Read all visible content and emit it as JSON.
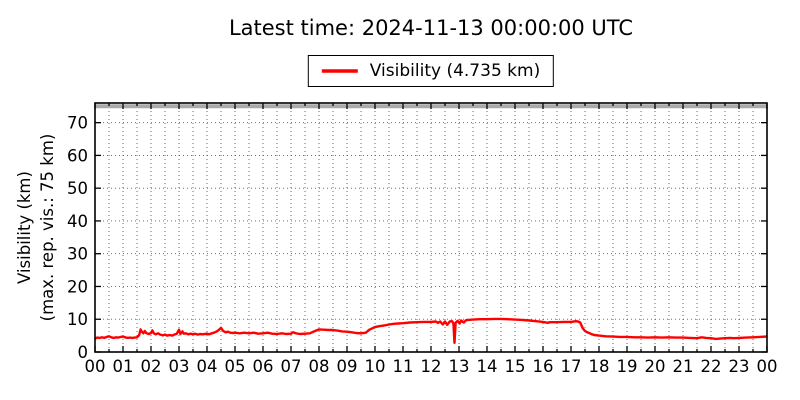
{
  "header": {
    "title": "Latest time: 2024-11-13 00:00:00 UTC"
  },
  "legend": {
    "label": "Visibility (4.735 km)",
    "swatch_color": "#ff0000",
    "position": "above plot, centered"
  },
  "colors": {
    "line": "#ff0000",
    "max_vis_band": "#aaaaaa",
    "frame": "#000000",
    "grid": "#5a5a5a",
    "background": "#ffffff",
    "text": "#000000"
  },
  "chart_data": {
    "type": "line",
    "title": "Latest time: 2024-11-13 00:00:00 UTC",
    "xlabel": "",
    "ylabel_line1": "Visibility (km)",
    "ylabel_line2": "(max. rep. vis.: 75 km)",
    "xlim": [
      0,
      24
    ],
    "ylim": [
      0,
      76
    ],
    "x_tick_labels": [
      "00",
      "01",
      "02",
      "03",
      "04",
      "05",
      "06",
      "07",
      "08",
      "09",
      "10",
      "11",
      "12",
      "13",
      "14",
      "15",
      "16",
      "17",
      "18",
      "19",
      "20",
      "21",
      "22",
      "23",
      "00"
    ],
    "x_tick_hours": [
      0,
      1,
      2,
      3,
      4,
      5,
      6,
      7,
      8,
      9,
      10,
      11,
      12,
      13,
      14,
      15,
      16,
      17,
      18,
      19,
      20,
      21,
      22,
      23,
      24
    ],
    "y_tick_labels": [
      "0",
      "10",
      "20",
      "30",
      "40",
      "50",
      "60",
      "70"
    ],
    "y_ticks": [
      0,
      10,
      20,
      30,
      40,
      50,
      60,
      70
    ],
    "grid": "dotted; vertical every 0.5 h, horizontal every 10 km",
    "max_reported_visibility_km": 75,
    "latest_value_km": 4.735,
    "legend_position": "upper center, outside axes",
    "series": [
      {
        "name": "Visibility (4.735 km)",
        "color": "#ff0000",
        "units": "km",
        "points": [
          [
            0.0,
            4.1
          ],
          [
            0.08,
            4.4
          ],
          [
            0.17,
            4.3
          ],
          [
            0.25,
            4.5
          ],
          [
            0.33,
            4.3
          ],
          [
            0.42,
            4.6
          ],
          [
            0.5,
            4.8
          ],
          [
            0.58,
            4.5
          ],
          [
            0.67,
            4.3
          ],
          [
            0.75,
            4.5
          ],
          [
            0.83,
            4.4
          ],
          [
            0.92,
            4.6
          ],
          [
            1.0,
            4.7
          ],
          [
            1.08,
            4.5
          ],
          [
            1.17,
            4.3
          ],
          [
            1.25,
            4.4
          ],
          [
            1.33,
            4.3
          ],
          [
            1.42,
            4.4
          ],
          [
            1.5,
            4.5
          ],
          [
            1.58,
            5.2
          ],
          [
            1.63,
            6.9
          ],
          [
            1.68,
            6.1
          ],
          [
            1.73,
            5.7
          ],
          [
            1.78,
            6.4
          ],
          [
            1.83,
            5.8
          ],
          [
            1.92,
            5.5
          ],
          [
            2.0,
            5.8
          ],
          [
            2.05,
            6.6
          ],
          [
            2.1,
            5.7
          ],
          [
            2.17,
            5.4
          ],
          [
            2.25,
            5.7
          ],
          [
            2.33,
            5.3
          ],
          [
            2.42,
            5.1
          ],
          [
            2.5,
            5.3
          ],
          [
            2.58,
            5.0
          ],
          [
            2.67,
            5.2
          ],
          [
            2.75,
            5.0
          ],
          [
            2.83,
            5.3
          ],
          [
            2.92,
            5.6
          ],
          [
            3.0,
            6.8
          ],
          [
            3.05,
            5.5
          ],
          [
            3.12,
            6.3
          ],
          [
            3.17,
            5.6
          ],
          [
            3.25,
            5.7
          ],
          [
            3.33,
            5.4
          ],
          [
            3.42,
            5.6
          ],
          [
            3.5,
            5.4
          ],
          [
            3.58,
            5.6
          ],
          [
            3.67,
            5.3
          ],
          [
            3.75,
            5.5
          ],
          [
            3.83,
            5.4
          ],
          [
            3.92,
            5.5
          ],
          [
            4.0,
            5.6
          ],
          [
            4.08,
            5.4
          ],
          [
            4.17,
            5.7
          ],
          [
            4.25,
            5.9
          ],
          [
            4.33,
            6.2
          ],
          [
            4.42,
            6.7
          ],
          [
            4.5,
            7.4
          ],
          [
            4.58,
            6.4
          ],
          [
            4.67,
            6.0
          ],
          [
            4.75,
            6.2
          ],
          [
            4.83,
            5.9
          ],
          [
            4.92,
            5.8
          ],
          [
            5.0,
            5.9
          ],
          [
            5.17,
            5.7
          ],
          [
            5.33,
            5.9
          ],
          [
            5.5,
            5.7
          ],
          [
            5.67,
            5.9
          ],
          [
            5.83,
            5.6
          ],
          [
            6.0,
            5.7
          ],
          [
            6.17,
            5.9
          ],
          [
            6.33,
            5.6
          ],
          [
            6.5,
            5.5
          ],
          [
            6.67,
            5.7
          ],
          [
            6.83,
            5.5
          ],
          [
            7.0,
            5.6
          ],
          [
            7.08,
            6.0
          ],
          [
            7.17,
            5.7
          ],
          [
            7.33,
            5.5
          ],
          [
            7.5,
            5.6
          ],
          [
            7.67,
            5.7
          ],
          [
            7.83,
            6.3
          ],
          [
            8.0,
            6.9
          ],
          [
            8.17,
            6.8
          ],
          [
            8.33,
            6.7
          ],
          [
            8.5,
            6.7
          ],
          [
            8.67,
            6.5
          ],
          [
            8.83,
            6.3
          ],
          [
            9.0,
            6.2
          ],
          [
            9.17,
            6.0
          ],
          [
            9.33,
            5.8
          ],
          [
            9.5,
            5.7
          ],
          [
            9.67,
            5.9
          ],
          [
            9.8,
            6.8
          ],
          [
            9.92,
            7.3
          ],
          [
            10.0,
            7.6
          ],
          [
            10.17,
            7.9
          ],
          [
            10.33,
            8.1
          ],
          [
            10.5,
            8.4
          ],
          [
            10.67,
            8.6
          ],
          [
            10.83,
            8.7
          ],
          [
            11.0,
            8.8
          ],
          [
            11.25,
            9.0
          ],
          [
            11.5,
            9.1
          ],
          [
            11.75,
            9.2
          ],
          [
            12.0,
            9.2
          ],
          [
            12.17,
            9.3
          ],
          [
            12.25,
            8.9
          ],
          [
            12.33,
            9.3
          ],
          [
            12.42,
            8.4
          ],
          [
            12.5,
            9.3
          ],
          [
            12.58,
            8.3
          ],
          [
            12.67,
            9.3
          ],
          [
            12.75,
            9.4
          ],
          [
            12.8,
            8.8
          ],
          [
            12.84,
            2.8
          ],
          [
            12.88,
            8.9
          ],
          [
            12.95,
            9.5
          ],
          [
            13.02,
            8.7
          ],
          [
            13.08,
            9.6
          ],
          [
            13.17,
            9.0
          ],
          [
            13.25,
            9.7
          ],
          [
            13.33,
            9.8
          ],
          [
            13.5,
            9.9
          ],
          [
            13.75,
            10.0
          ],
          [
            14.0,
            10.0
          ],
          [
            14.25,
            10.1
          ],
          [
            14.5,
            10.1
          ],
          [
            14.75,
            10.0
          ],
          [
            15.0,
            9.9
          ],
          [
            15.25,
            9.8
          ],
          [
            15.5,
            9.6
          ],
          [
            15.75,
            9.4
          ],
          [
            16.0,
            9.2
          ],
          [
            16.17,
            8.9
          ],
          [
            16.25,
            9.1
          ],
          [
            16.5,
            9.1
          ],
          [
            16.75,
            9.2
          ],
          [
            17.0,
            9.2
          ],
          [
            17.17,
            9.4
          ],
          [
            17.25,
            9.3
          ],
          [
            17.33,
            9.0
          ],
          [
            17.42,
            7.2
          ],
          [
            17.5,
            6.4
          ],
          [
            17.58,
            6.0
          ],
          [
            17.67,
            5.7
          ],
          [
            17.75,
            5.4
          ],
          [
            17.83,
            5.2
          ],
          [
            18.0,
            5.0
          ],
          [
            18.25,
            4.8
          ],
          [
            18.5,
            4.7
          ],
          [
            18.75,
            4.6
          ],
          [
            19.0,
            4.6
          ],
          [
            19.25,
            4.5
          ],
          [
            19.5,
            4.5
          ],
          [
            19.75,
            4.4
          ],
          [
            20.0,
            4.5
          ],
          [
            20.25,
            4.4
          ],
          [
            20.5,
            4.5
          ],
          [
            20.75,
            4.4
          ],
          [
            21.0,
            4.4
          ],
          [
            21.25,
            4.3
          ],
          [
            21.5,
            4.2
          ],
          [
            21.67,
            4.5
          ],
          [
            21.83,
            4.3
          ],
          [
            22.0,
            4.2
          ],
          [
            22.17,
            4.0
          ],
          [
            22.33,
            4.1
          ],
          [
            22.5,
            4.2
          ],
          [
            22.67,
            4.3
          ],
          [
            22.83,
            4.2
          ],
          [
            23.0,
            4.3
          ],
          [
            23.25,
            4.4
          ],
          [
            23.5,
            4.5
          ],
          [
            23.75,
            4.6
          ],
          [
            24.0,
            4.735
          ]
        ]
      }
    ]
  }
}
